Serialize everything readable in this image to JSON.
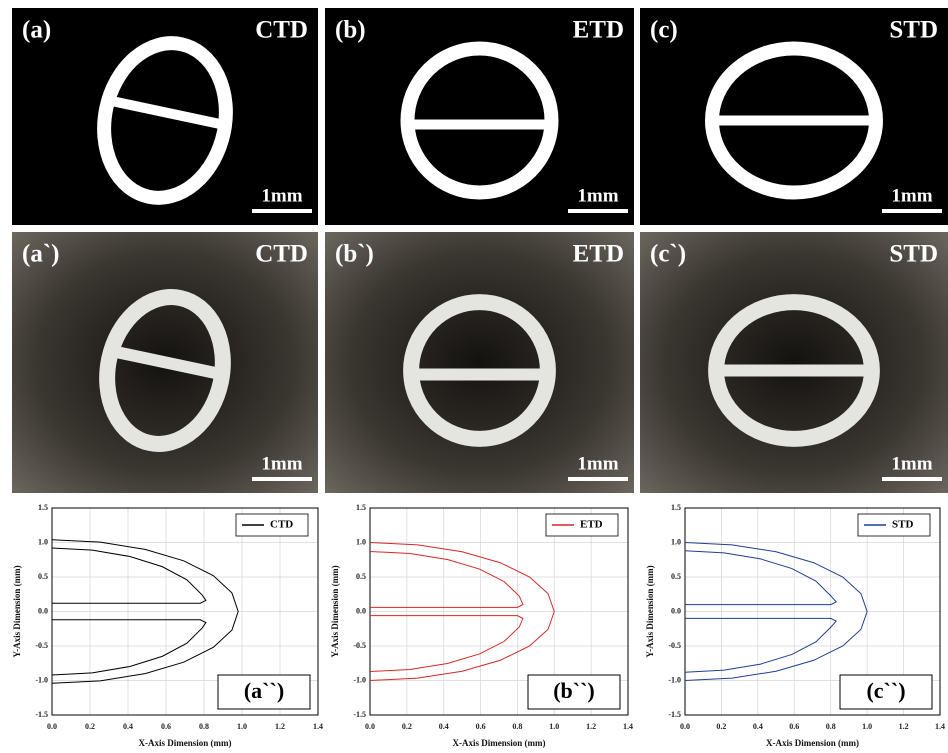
{
  "panels": [
    {
      "label": "(a)",
      "name": "CTD",
      "scale": "1mm"
    },
    {
      "label": "(b)",
      "name": "ETD",
      "scale": "1mm"
    },
    {
      "label": "(c)",
      "name": "STD",
      "scale": "1mm"
    },
    {
      "label": "(a`)",
      "name": "CTD",
      "scale": "1mm"
    },
    {
      "label": "(b`)",
      "name": "ETD",
      "scale": "1mm"
    },
    {
      "label": "(c`)",
      "name": "STD",
      "scale": "1mm"
    }
  ],
  "chart_data": [
    {
      "type": "line",
      "panel_label": "(a``)",
      "x_label": "X-Axis Dimension (mm)",
      "y_label": "Y-Axis Dimension (mm)",
      "xlim": [
        0,
        1.4
      ],
      "ylim": [
        -1.5,
        1.5
      ],
      "grid": true,
      "legend": "upper right",
      "xticks": [
        {
          "value": 0,
          "label": "0.0"
        },
        0.2,
        0.4,
        0.6,
        0.8,
        {
          "value": 1,
          "label": "1.0"
        },
        1.2,
        1.4
      ],
      "yticks": [
        -1.5,
        {
          "value": -1,
          "label": "-1.0"
        },
        -0.5,
        {
          "value": 0,
          "label": "0.0"
        },
        0.5,
        {
          "value": 1,
          "label": "1.0"
        },
        1.5
      ],
      "series": [
        {
          "name": "CTD",
          "color": "#000000",
          "x": [
            0,
            0.254,
            0.49,
            0.693,
            0.849,
            0.947,
            0.98,
            0.947,
            0.849,
            0.693,
            0.49,
            0.254,
            0,
            null,
            0,
            0.212,
            0.41,
            0.58,
            0.71,
            0.79,
            0.81,
            0.78,
            0,
            null,
            0,
            0.212,
            0.41,
            0.58,
            0.71,
            0.79,
            0.81,
            0.78,
            0
          ],
          "y": [
            1.04,
            1.005,
            0.9,
            0.735,
            0.52,
            0.269,
            0,
            -0.269,
            -0.52,
            -0.735,
            -0.9,
            -1.005,
            -1.04,
            null,
            0.92,
            0.889,
            0.797,
            0.65,
            0.46,
            0.24,
            0.16,
            0.12,
            0.12,
            null,
            -0.92,
            -0.889,
            -0.797,
            -0.65,
            -0.46,
            -0.24,
            -0.16,
            -0.12,
            -0.12
          ]
        }
      ]
    },
    {
      "type": "line",
      "panel_label": "(b``)",
      "x_label": "X-Axis Dimension (mm)",
      "y_label": "Y-Axis Dimension (mm)",
      "xlim": [
        0,
        1.4
      ],
      "ylim": [
        -1.5,
        1.5
      ],
      "grid": true,
      "legend": "upper right",
      "xticks": [
        {
          "value": 0,
          "label": "0.0"
        },
        0.2,
        0.4,
        0.6,
        0.8,
        {
          "value": 1,
          "label": "1.0"
        },
        1.2,
        1.4
      ],
      "yticks": [
        -1.5,
        {
          "value": -1,
          "label": "-1.0"
        },
        -0.5,
        {
          "value": 0,
          "label": "0.0"
        },
        0.5,
        {
          "value": 1,
          "label": "1.0"
        },
        1.5
      ],
      "series": [
        {
          "name": "ETD",
          "color": "#d62728",
          "x": [
            0,
            0.259,
            0.5,
            0.707,
            0.866,
            0.966,
            1,
            0.966,
            0.866,
            0.707,
            0.5,
            0.259,
            0,
            null,
            0,
            0.217,
            0.42,
            0.594,
            0.727,
            0.81,
            0.83,
            0.8,
            0,
            null,
            0,
            0.217,
            0.42,
            0.594,
            0.727,
            0.81,
            0.83,
            0.8,
            0
          ],
          "y": [
            1,
            0.966,
            0.866,
            0.707,
            0.5,
            0.259,
            0,
            -0.259,
            -0.5,
            -0.707,
            -0.866,
            -0.966,
            -1,
            null,
            0.87,
            0.84,
            0.753,
            0.615,
            0.435,
            0.225,
            0.1,
            0.06,
            0.06,
            null,
            -0.87,
            -0.84,
            -0.753,
            -0.615,
            -0.435,
            -0.225,
            -0.1,
            -0.06,
            -0.06
          ]
        }
      ]
    },
    {
      "type": "line",
      "panel_label": "(c``)",
      "x_label": "X-Axis Dimension (mm)",
      "y_label": "Y-Axis Dimension (mm)",
      "xlim": [
        0,
        1.4
      ],
      "ylim": [
        -1.5,
        1.5
      ],
      "grid": true,
      "legend": "upper right",
      "xticks": [
        {
          "value": 0,
          "label": "0.0"
        },
        0.2,
        0.4,
        0.6,
        0.8,
        {
          "value": 1,
          "label": "1.0"
        },
        1.2,
        1.4
      ],
      "yticks": [
        -1.5,
        {
          "value": -1,
          "label": "-1.0"
        },
        -0.5,
        {
          "value": 0,
          "label": "0.0"
        },
        0.5,
        {
          "value": 1,
          "label": "1.0"
        },
        1.5
      ],
      "series": [
        {
          "name": "STD",
          "color": "#1f3f8f",
          "x": [
            0,
            0.259,
            0.5,
            0.707,
            0.866,
            0.966,
            1,
            0.966,
            0.866,
            0.707,
            0.5,
            0.259,
            0,
            null,
            0,
            0.215,
            0.415,
            0.587,
            0.719,
            0.8,
            0.83,
            0.8,
            0,
            null,
            0,
            0.215,
            0.415,
            0.587,
            0.719,
            0.8,
            0.83,
            0.8,
            0
          ],
          "y": [
            1,
            0.966,
            0.866,
            0.707,
            0.5,
            0.259,
            0,
            -0.259,
            -0.5,
            -0.707,
            -0.866,
            -0.966,
            -1,
            null,
            0.88,
            0.85,
            0.762,
            0.622,
            0.44,
            0.228,
            0.14,
            0.1,
            0.1,
            null,
            -0.88,
            -0.85,
            -0.762,
            -0.622,
            -0.44,
            -0.228,
            -0.14,
            -0.1,
            -0.1
          ]
        }
      ]
    }
  ]
}
